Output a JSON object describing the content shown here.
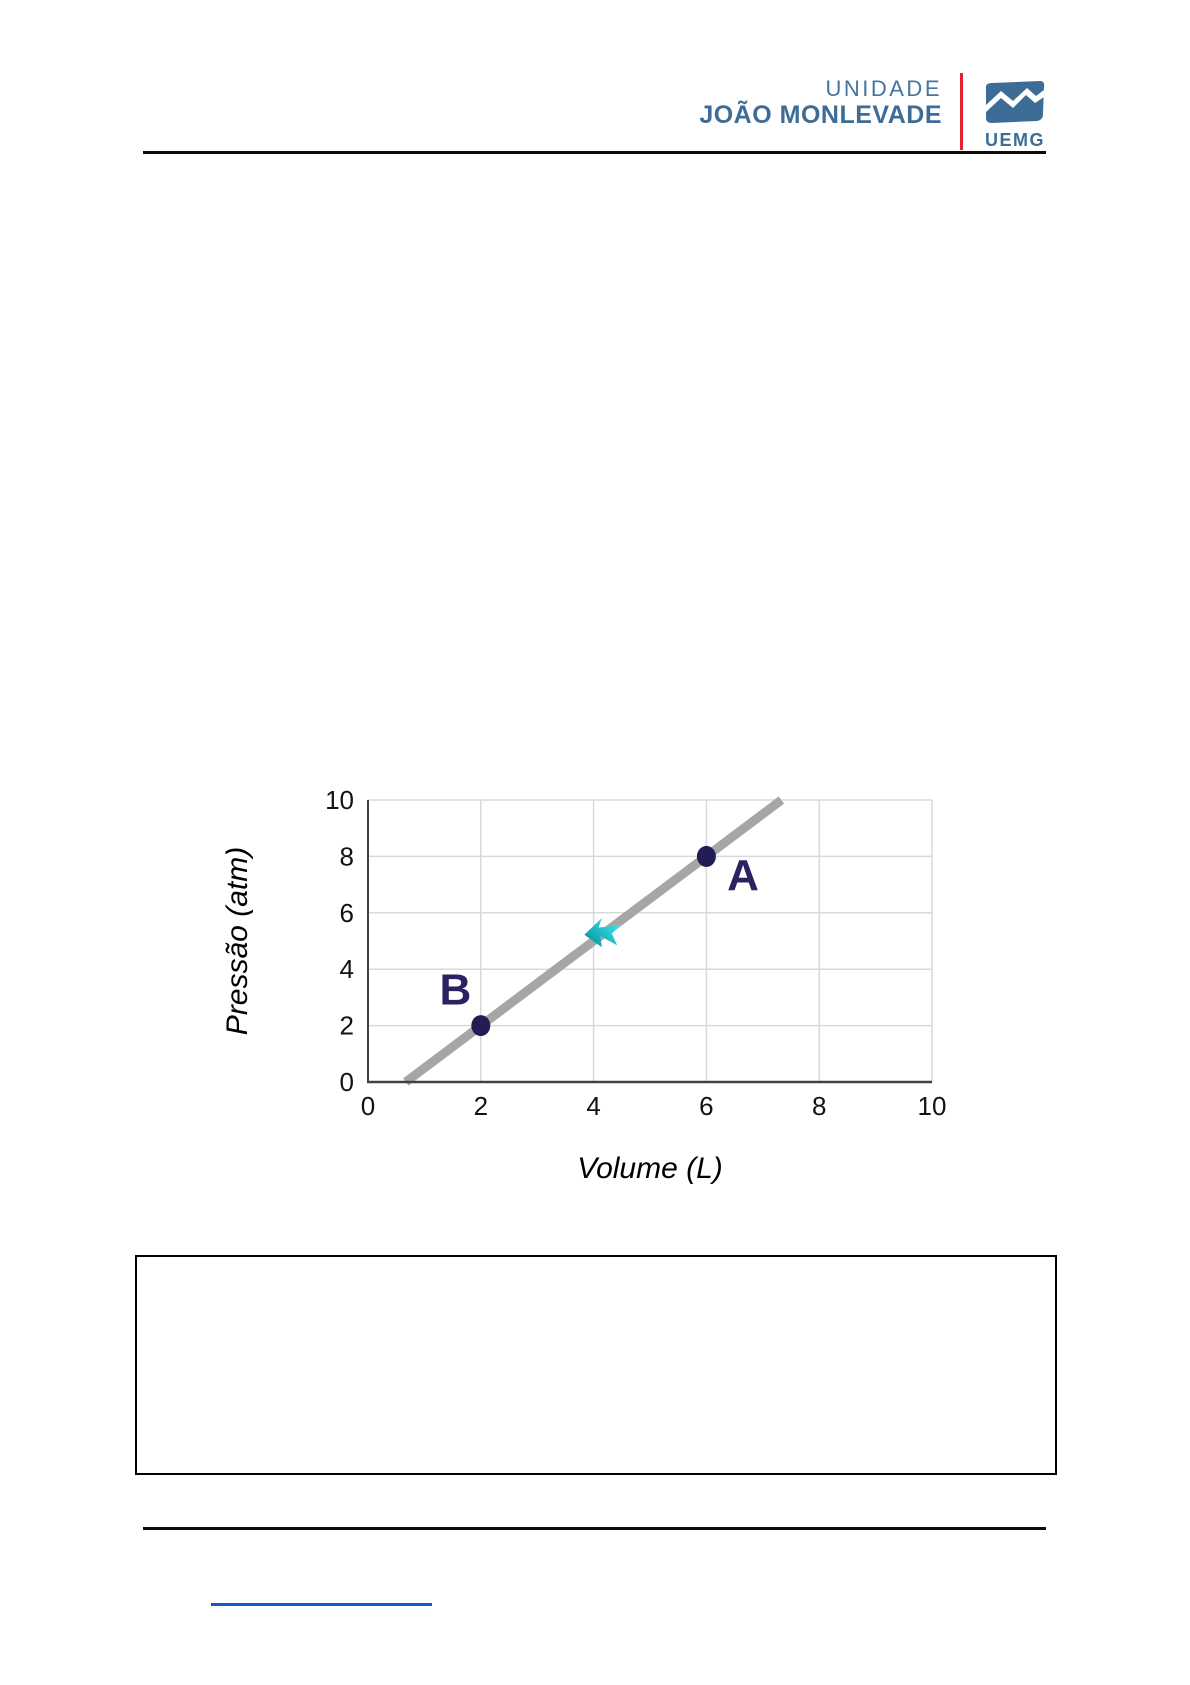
{
  "header": {
    "unit_label": "UNIDADE",
    "unit_name": "JOÃO MONLEVADE",
    "logo_text": "UEMG",
    "brand_blue": "#3d6d96",
    "divider_red": "#e6212e"
  },
  "chart_data": {
    "type": "scatter",
    "title": "",
    "xlabel": "Volume (L)",
    "ylabel": "Pressão (atm)",
    "xlim": [
      0,
      10
    ],
    "ylim": [
      0,
      10
    ],
    "xticks": [
      0,
      2,
      4,
      6,
      8,
      10
    ],
    "yticks": [
      0,
      2,
      4,
      6,
      8,
      10
    ],
    "grid": true,
    "legend": "none",
    "points": [
      {
        "label": "A",
        "x": 6,
        "y": 8,
        "label_dx": 0.65,
        "label_dy": -1.2
      },
      {
        "label": "B",
        "x": 2,
        "y": 2,
        "label_dx": -0.45,
        "label_dy": 0.75
      }
    ],
    "trend_line": {
      "x1": 0.67,
      "y1": 0,
      "x2": 7.33,
      "y2": 10,
      "color": "#a6a6a6",
      "width": 9
    },
    "annotation_arrow": {
      "x": 4.2,
      "y": 5.3,
      "color_dark": "#008c9e",
      "color_light": "#45ecf0"
    },
    "point_color": "#221d54",
    "label_color": "#2a2261",
    "grid_color": "#d9d9d9",
    "axis_color": "#424242"
  },
  "footnote_link": {
    "color": "#1457c8"
  }
}
